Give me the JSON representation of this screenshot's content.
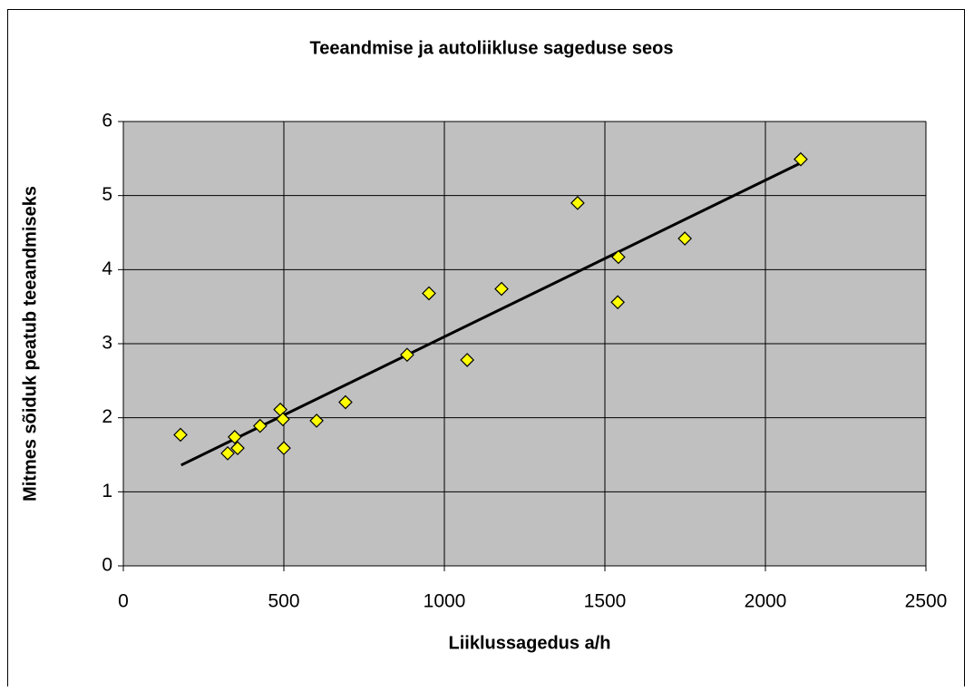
{
  "chart_data": {
    "type": "scatter",
    "title": "Teeandmise ja autoliikluse sageduse seos",
    "x_label": "Liiklussagedus a/h",
    "y_label": "Mitmes sõiduk peatub teeandmiseks",
    "series": [
      {
        "name": null,
        "color": "#ffff00",
        "x": [
          178,
          325,
          347,
          356,
          426,
          489,
          497,
          500,
          602,
          692,
          884,
          952,
          1071,
          1178,
          1415,
          1542,
          1540,
          1749,
          2110
        ],
        "values": [
          1.77,
          1.52,
          1.74,
          1.59,
          1.89,
          2.11,
          1.98,
          1.59,
          1.96,
          2.21,
          2.85,
          3.68,
          2.78,
          3.74,
          4.9,
          4.17,
          3.56,
          4.42,
          5.49
        ]
      }
    ],
    "trendline": {
      "color": "#000000",
      "x": [
        180,
        2110
      ],
      "values": [
        1.36,
        5.44
      ]
    },
    "xlim": [
      0,
      2500
    ],
    "xticks": [
      0,
      500,
      1000,
      1500,
      2000,
      2500
    ],
    "ylim": [
      0,
      6
    ],
    "yticks": [
      0,
      1,
      2,
      3,
      4,
      5,
      6
    ],
    "grid": true,
    "plot_background": "#c0c0c0"
  }
}
